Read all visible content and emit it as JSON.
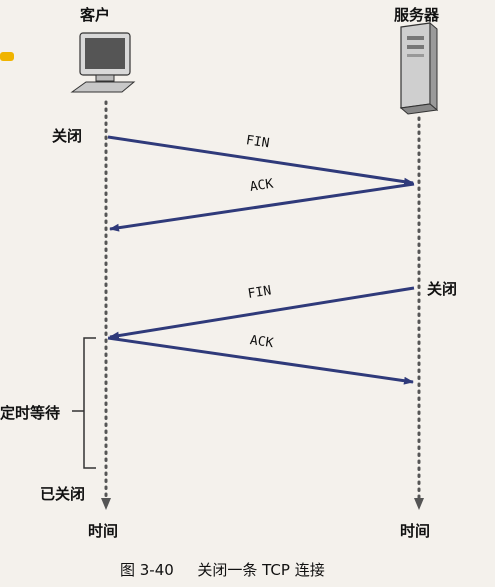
{
  "client": {
    "label": "客户",
    "close_label": "关闭",
    "closed_label": "已关闭",
    "timed_wait_label": "定时等待",
    "time_label": "时间"
  },
  "server": {
    "label": "服务器",
    "close_label": "关闭",
    "time_label": "时间"
  },
  "messages": [
    {
      "label": "FIN",
      "direction": "client-to-server"
    },
    {
      "label": "ACK",
      "direction": "server-to-client"
    },
    {
      "label": "FIN",
      "direction": "server-to-client"
    },
    {
      "label": "ACK",
      "direction": "client-to-server"
    }
  ],
  "caption": {
    "figure_number": "图 3-40",
    "title": "关闭一条 TCP 连接"
  },
  "colors": {
    "arrow": "#2f3a7a",
    "timeline": "#555555",
    "accent": "#f0b400"
  }
}
